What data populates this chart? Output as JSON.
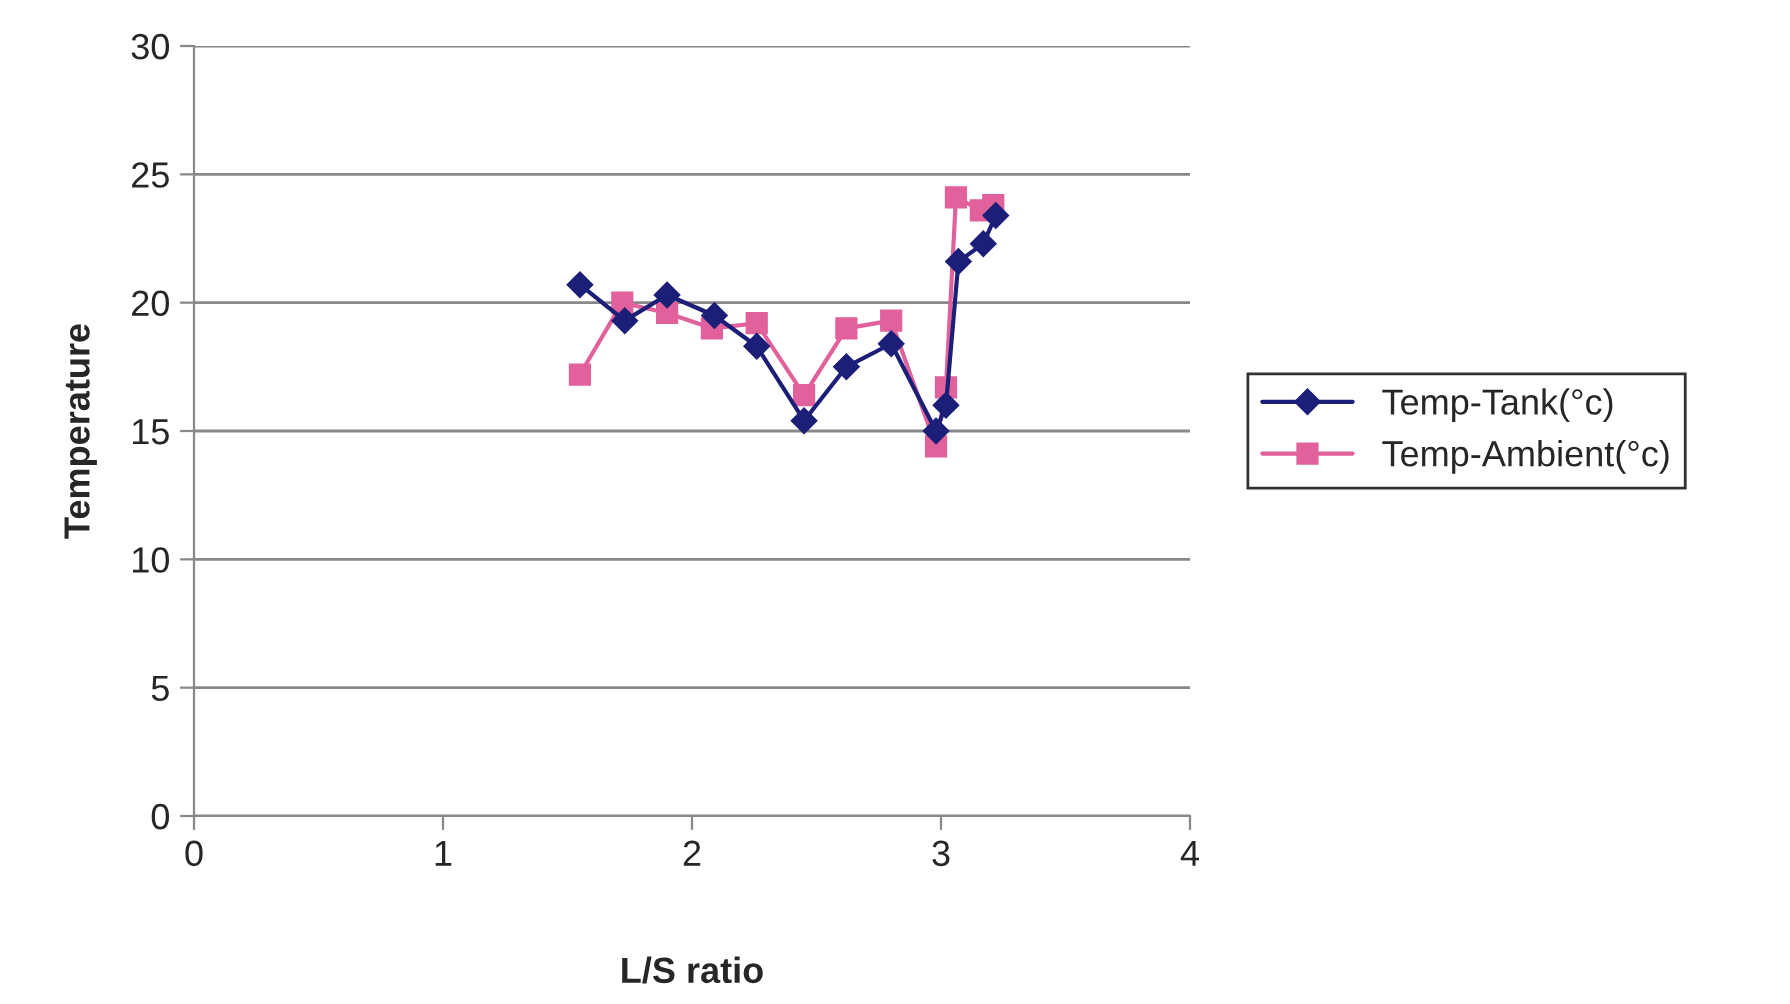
{
  "chart_data": {
    "type": "line",
    "xlabel": "L/S ratio",
    "ylabel": "Temperature",
    "xlim": [
      0,
      4
    ],
    "xticks": [
      0,
      1,
      2,
      3,
      4
    ],
    "ylim": [
      0,
      30
    ],
    "yticks": [
      0,
      5,
      10,
      15,
      20,
      25,
      30
    ],
    "grid": "y",
    "legend": "right",
    "series": [
      {
        "name": "Temp-Tank(°c)",
        "color": "#1c1f78",
        "marker": "diamond",
        "x": [
          1.55,
          1.73,
          1.9,
          2.09,
          2.26,
          2.45,
          2.62,
          2.8,
          2.98,
          3.02,
          3.07,
          3.17,
          3.22
        ],
        "values": [
          20.7,
          19.3,
          20.3,
          19.5,
          18.3,
          15.4,
          17.5,
          18.4,
          15.0,
          16.0,
          21.6,
          22.3,
          23.4
        ]
      },
      {
        "name": "Temp-Ambient(°c)",
        "color": "#e0619b",
        "marker": "square",
        "x": [
          1.55,
          1.72,
          1.9,
          2.08,
          2.26,
          2.45,
          2.62,
          2.8,
          2.98,
          3.02,
          3.06,
          3.16,
          3.21
        ],
        "values": [
          17.2,
          20.0,
          19.6,
          19.0,
          19.2,
          16.4,
          19.0,
          19.3,
          14.4,
          16.7,
          24.1,
          23.6,
          23.8
        ]
      }
    ]
  }
}
